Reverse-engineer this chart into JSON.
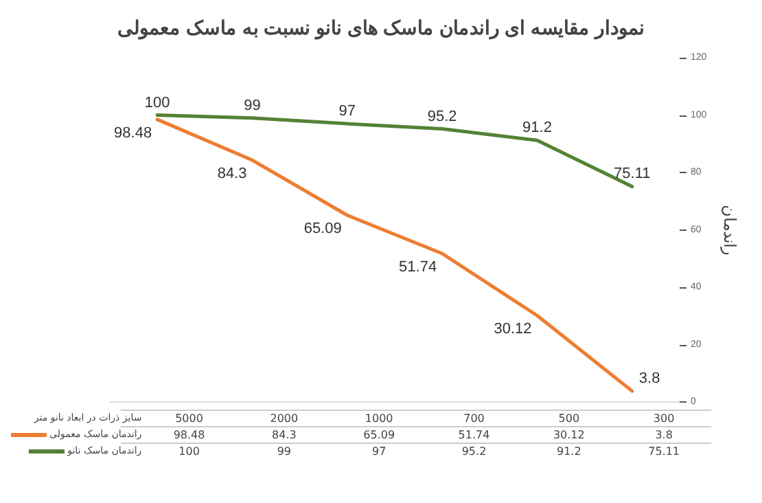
{
  "chart_data": {
    "type": "line",
    "title": "نمودار مقایسه ای راندمان ماسک های نانو نسبت به ماسک معمولی",
    "xlabel": "سایز ذرات در ابعاد نانو متر",
    "ylabel": "راندمان",
    "categories": [
      "5000",
      "2000",
      "1000",
      "700",
      "500",
      "300"
    ],
    "series": [
      {
        "name": "راندمان ماسک معمولی",
        "color": "#ed7d31",
        "values": [
          98.48,
          84.3,
          65.09,
          51.74,
          30.12,
          3.8
        ]
      },
      {
        "name": "راندمان ماسک نانو",
        "color": "#548235",
        "values": [
          100,
          99,
          97,
          95.2,
          91.2,
          75.11
        ]
      }
    ],
    "annotations": [
      "98.48",
      "84.3",
      "65.09",
      "51.74",
      "30.12",
      "3.8",
      "100",
      "99",
      "97",
      "95.2",
      "91.2",
      "75.11"
    ],
    "ylim": [
      0,
      120
    ],
    "yticks": [
      0,
      20,
      40,
      60,
      80,
      100,
      120
    ],
    "data_labels": true,
    "legend": "bottom",
    "grid": false,
    "marker": "none",
    "line_style": "solid"
  }
}
